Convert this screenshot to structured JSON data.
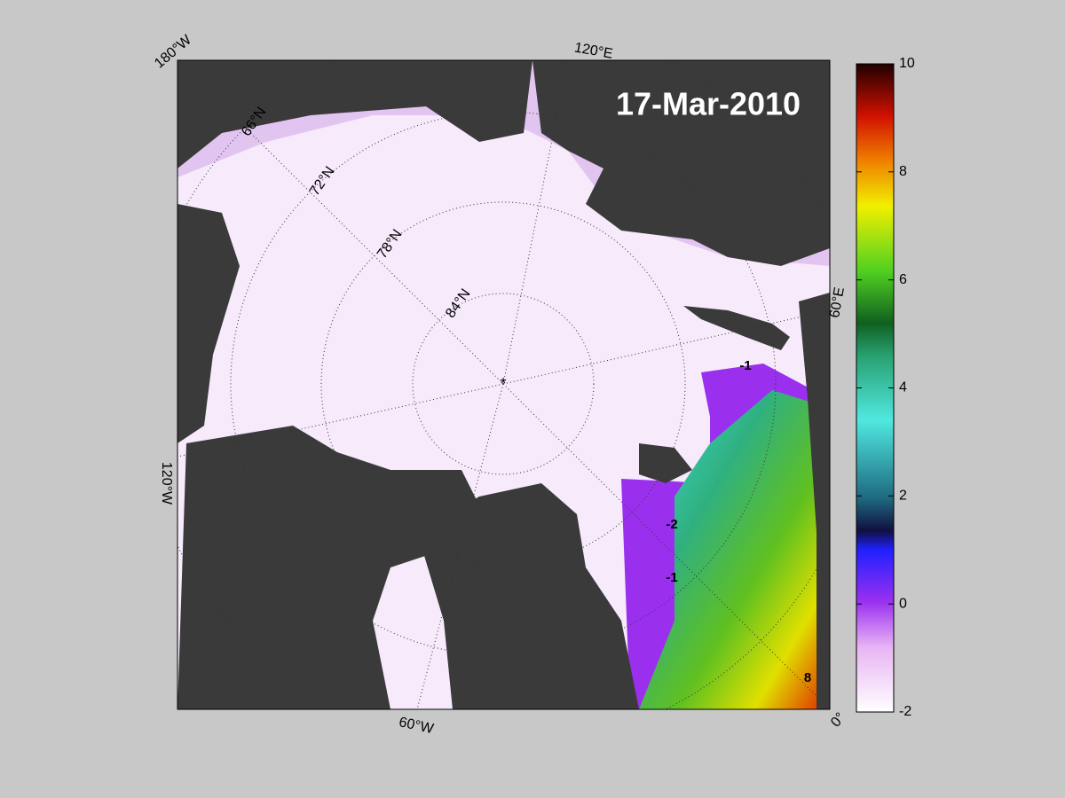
{
  "title": "17-Mar-2010",
  "longitude_labels": [
    "180°W",
    "120°E",
    "60°E",
    "0°",
    "60°W",
    "120°W"
  ],
  "latitude_labels": [
    "66°N",
    "72°N",
    "78°N",
    "84°N"
  ],
  "contour_labels": [
    -1,
    -2,
    -1,
    8
  ],
  "colorbar": {
    "lim": [
      -2,
      10
    ],
    "ticks": [
      -2,
      0,
      2,
      4,
      6,
      8,
      10
    ]
  }
}
